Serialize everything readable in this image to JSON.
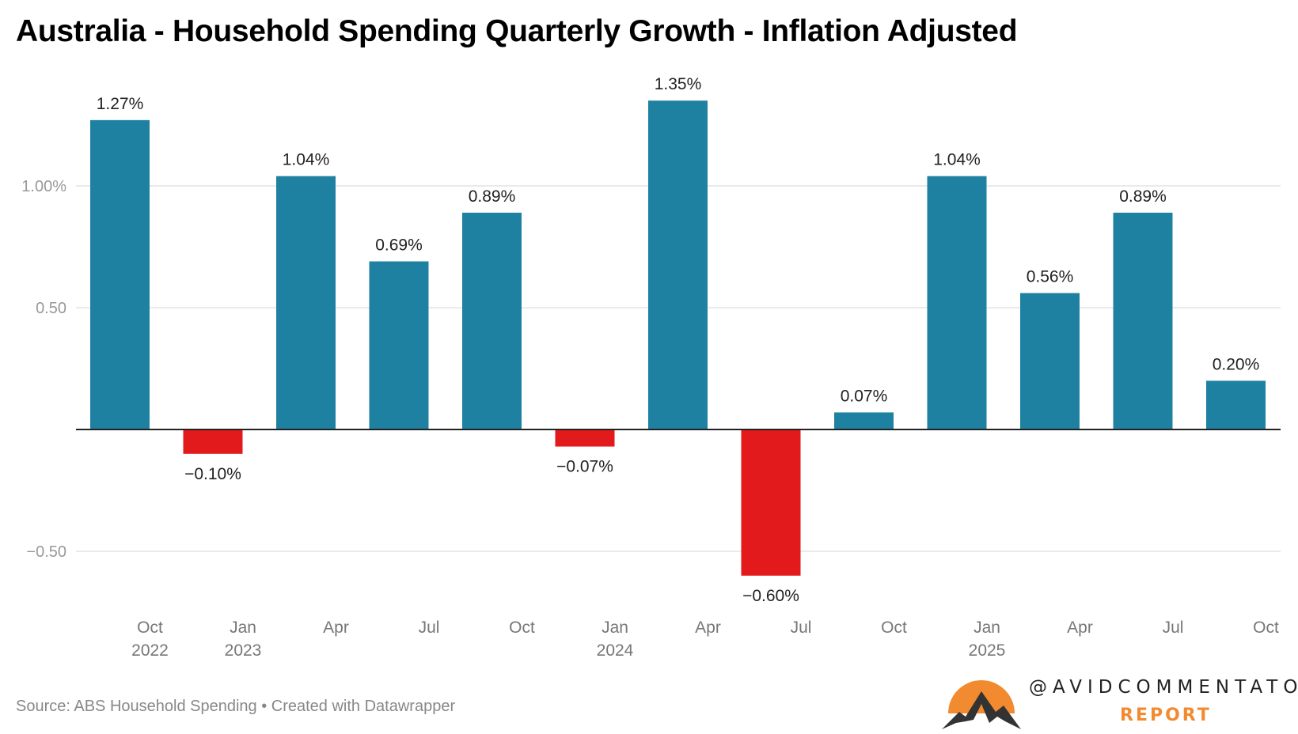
{
  "title": "Australia - Household Spending Quarterly Growth - Inflation Adjusted",
  "source": "Source: ABS Household Spending • Created with Datawrapper",
  "logo": {
    "handle": "@AVIDCOMMENTATOR",
    "sub": "Report"
  },
  "colors": {
    "positive": "#1f81a1",
    "negative": "#e31a1c",
    "grid": "#e4e4e4",
    "axis": "#222222",
    "tick": "#999999"
  },
  "chart_data": {
    "type": "bar",
    "title": "Australia - Household Spending Quarterly Growth - Inflation Adjusted",
    "categories": [
      "Oct 2022",
      "Jan 2023",
      "Apr 2023",
      "Jul 2023",
      "Oct 2023",
      "Jan 2024",
      "Apr 2024",
      "Jul 2024",
      "Oct 2024",
      "Jan 2025",
      "Apr 2025",
      "Jul 2025",
      "Oct 2025"
    ],
    "x_tick_labels": [
      [
        "Oct",
        "2022"
      ],
      [
        "Jan",
        "2023"
      ],
      [
        "Apr",
        ""
      ],
      [
        "Jul",
        ""
      ],
      [
        "Oct",
        ""
      ],
      [
        "Jan",
        "2024"
      ],
      [
        "Apr",
        ""
      ],
      [
        "Jul",
        ""
      ],
      [
        "Oct",
        ""
      ],
      [
        "Jan",
        "2025"
      ],
      [
        "Apr",
        ""
      ],
      [
        "Jul",
        ""
      ],
      [
        "Oct",
        ""
      ]
    ],
    "values": [
      1.27,
      -0.1,
      1.04,
      0.69,
      0.89,
      -0.07,
      1.35,
      -0.6,
      0.07,
      1.04,
      0.56,
      0.89,
      0.2
    ],
    "data_labels": [
      "1.27%",
      "−0.10%",
      "1.04%",
      "0.69%",
      "0.89%",
      "−0.07%",
      "1.35%",
      "−0.60%",
      "0.07%",
      "1.04%",
      "0.56%",
      "0.89%",
      "0.20%"
    ],
    "y_ticks": [
      {
        "value": 1.0,
        "label": "1.00%"
      },
      {
        "value": 0.5,
        "label": "0.50"
      },
      {
        "value": -0.5,
        "label": "−0.50"
      }
    ],
    "ylim": [
      -0.75,
      1.45
    ],
    "grid": true,
    "xlabel": "",
    "ylabel": ""
  }
}
